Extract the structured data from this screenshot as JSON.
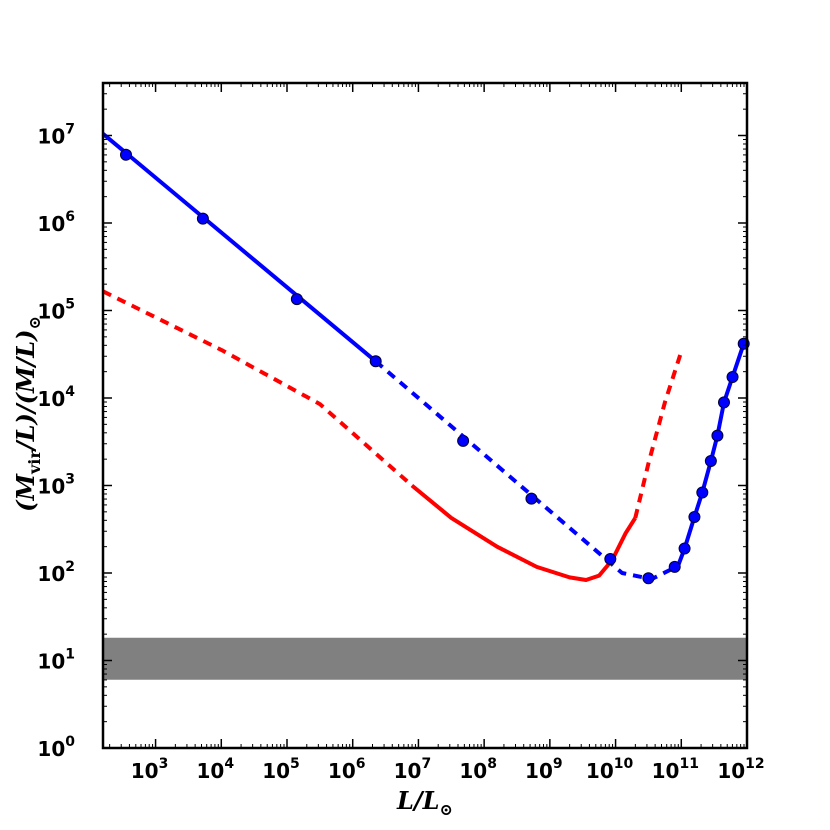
{
  "chart_data": {
    "type": "line",
    "title": "",
    "xlabel": {
      "main": "L/L",
      "sub": "⊙"
    },
    "ylabel": {
      "parts": [
        "(M",
        "vir",
        "/L)/(M/L)",
        "⊙"
      ]
    },
    "xscale": "log",
    "yscale": "log",
    "xlim_log10": [
      2.2,
      12.0
    ],
    "ylim_log10": [
      0.0,
      7.6
    ],
    "grid": false,
    "xticks": [
      {
        "base": "10",
        "exp": "3",
        "log10": 3
      },
      {
        "base": "10",
        "exp": "4",
        "log10": 4
      },
      {
        "base": "10",
        "exp": "5",
        "log10": 5
      },
      {
        "base": "10",
        "exp": "6",
        "log10": 6
      },
      {
        "base": "10",
        "exp": "7",
        "log10": 7
      },
      {
        "base": "10",
        "exp": "8",
        "log10": 8
      },
      {
        "base": "10",
        "exp": "9",
        "log10": 9
      },
      {
        "base": "10",
        "exp": "10",
        "log10": 10
      },
      {
        "base": "10",
        "exp": "11",
        "log10": 11
      },
      {
        "base": "10",
        "exp": "12",
        "log10": 12
      }
    ],
    "yticks": [
      {
        "base": "10",
        "exp": "0",
        "log10": 0
      },
      {
        "base": "10",
        "exp": "1",
        "log10": 1
      },
      {
        "base": "10",
        "exp": "2",
        "log10": 2
      },
      {
        "base": "10",
        "exp": "3",
        "log10": 3
      },
      {
        "base": "10",
        "exp": "4",
        "log10": 4
      },
      {
        "base": "10",
        "exp": "5",
        "log10": 5
      },
      {
        "base": "10",
        "exp": "6",
        "log10": 6
      },
      {
        "base": "10",
        "exp": "7",
        "log10": 7
      }
    ],
    "band": {
      "color": "#808080",
      "y_log10": [
        0.78,
        1.26
      ]
    },
    "colors": {
      "blue": "#0000ff",
      "red": "#ff0000"
    },
    "series": [
      {
        "color": "#0000ff",
        "style": "solid",
        "markers": false,
        "points_log10": [
          [
            2.2,
            7.02
          ],
          [
            6.35,
            4.42
          ]
        ]
      },
      {
        "color": "#0000ff",
        "style": "dashed",
        "markers": false,
        "points_log10": [
          [
            6.35,
            4.42
          ],
          [
            10.1,
            2.0
          ],
          [
            10.55,
            1.93
          ],
          [
            10.95,
            2.08
          ]
        ]
      },
      {
        "color": "#0000ff",
        "style": "solid",
        "markers": false,
        "points_log10": [
          [
            10.95,
            2.08
          ],
          [
            11.05,
            2.28
          ],
          [
            11.2,
            2.64
          ],
          [
            11.32,
            2.92
          ],
          [
            11.45,
            3.28
          ],
          [
            11.55,
            3.57
          ],
          [
            11.65,
            3.95
          ],
          [
            11.78,
            4.24
          ],
          [
            11.95,
            4.62
          ],
          [
            12.0,
            4.68
          ]
        ]
      },
      {
        "color": "#0000ff",
        "style": "none",
        "markers": true,
        "points_log10": [
          [
            2.55,
            6.78
          ],
          [
            3.72,
            6.05
          ],
          [
            5.15,
            5.13
          ],
          [
            6.35,
            4.42
          ],
          [
            7.68,
            3.51
          ],
          [
            8.72,
            2.85
          ],
          [
            9.92,
            2.16
          ],
          [
            10.5,
            1.94
          ],
          [
            10.9,
            2.07
          ],
          [
            11.05,
            2.28
          ],
          [
            11.2,
            2.64
          ],
          [
            11.32,
            2.92
          ],
          [
            11.45,
            3.28
          ],
          [
            11.55,
            3.57
          ],
          [
            11.65,
            3.95
          ],
          [
            11.78,
            4.24
          ],
          [
            11.95,
            4.62
          ]
        ]
      },
      {
        "color": "#ff0000",
        "style": "dashed",
        "markers": false,
        "points_log10": [
          [
            2.2,
            5.22
          ],
          [
            4.0,
            4.55
          ],
          [
            5.5,
            3.93
          ],
          [
            6.9,
            3.0
          ]
        ]
      },
      {
        "color": "#ff0000",
        "style": "solid",
        "markers": false,
        "points_log10": [
          [
            6.9,
            3.0
          ],
          [
            7.5,
            2.63
          ],
          [
            8.2,
            2.3
          ],
          [
            8.8,
            2.07
          ],
          [
            9.3,
            1.95
          ],
          [
            9.55,
            1.92
          ],
          [
            9.75,
            1.97
          ],
          [
            9.95,
            2.15
          ],
          [
            10.15,
            2.45
          ],
          [
            10.3,
            2.63
          ]
        ]
      },
      {
        "color": "#ff0000",
        "style": "dashed",
        "markers": false,
        "points_log10": [
          [
            10.3,
            2.63
          ],
          [
            10.5,
            3.25
          ],
          [
            10.75,
            3.95
          ],
          [
            11.0,
            4.53
          ]
        ]
      }
    ]
  }
}
